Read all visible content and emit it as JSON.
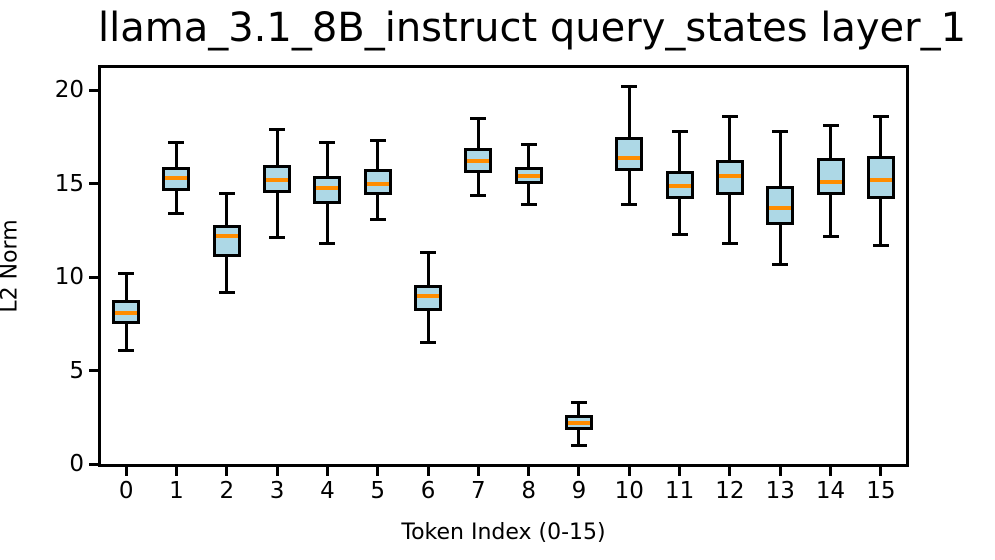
{
  "chart_data": {
    "type": "boxplot",
    "title": "llama_3.1_8B_instruct query_states layer_1",
    "xlabel": "Token Index (0-15)",
    "ylabel": "L2 Norm",
    "categories": [
      "0",
      "1",
      "2",
      "3",
      "4",
      "5",
      "6",
      "7",
      "8",
      "9",
      "10",
      "11",
      "12",
      "13",
      "14",
      "15"
    ],
    "yticks": [
      0,
      5,
      10,
      15,
      20
    ],
    "ylim": [
      0,
      21.2
    ],
    "grid": false,
    "legend": "none",
    "series": [
      {
        "token": 0,
        "whislo": 6.1,
        "q1": 7.5,
        "med": 8.1,
        "q3": 8.8,
        "whishi": 10.2
      },
      {
        "token": 1,
        "whislo": 13.4,
        "q1": 14.6,
        "med": 15.3,
        "q3": 15.9,
        "whishi": 17.2
      },
      {
        "token": 2,
        "whislo": 9.2,
        "q1": 11.1,
        "med": 12.2,
        "q3": 12.8,
        "whishi": 14.5
      },
      {
        "token": 3,
        "whislo": 12.1,
        "q1": 14.5,
        "med": 15.2,
        "q3": 16.0,
        "whishi": 17.9
      },
      {
        "token": 4,
        "whislo": 11.8,
        "q1": 13.9,
        "med": 14.8,
        "q3": 15.4,
        "whishi": 17.2
      },
      {
        "token": 5,
        "whislo": 13.1,
        "q1": 14.4,
        "med": 15.0,
        "q3": 15.8,
        "whishi": 17.3
      },
      {
        "token": 6,
        "whislo": 6.5,
        "q1": 8.2,
        "med": 9.0,
        "q3": 9.6,
        "whishi": 11.3
      },
      {
        "token": 7,
        "whislo": 14.4,
        "q1": 15.6,
        "med": 16.2,
        "q3": 16.9,
        "whishi": 18.5
      },
      {
        "token": 8,
        "whislo": 13.9,
        "q1": 15.0,
        "med": 15.4,
        "q3": 15.9,
        "whishi": 17.1
      },
      {
        "token": 9,
        "whislo": 1.0,
        "q1": 1.8,
        "med": 2.2,
        "q3": 2.6,
        "whishi": 3.3
      },
      {
        "token": 10,
        "whislo": 13.9,
        "q1": 15.7,
        "med": 16.4,
        "q3": 17.5,
        "whishi": 20.2
      },
      {
        "token": 11,
        "whislo": 12.3,
        "q1": 14.2,
        "med": 14.9,
        "q3": 15.7,
        "whishi": 17.8
      },
      {
        "token": 12,
        "whislo": 11.8,
        "q1": 14.4,
        "med": 15.4,
        "q3": 16.3,
        "whishi": 18.6
      },
      {
        "token": 13,
        "whislo": 10.7,
        "q1": 12.8,
        "med": 13.7,
        "q3": 14.9,
        "whishi": 17.8
      },
      {
        "token": 14,
        "whislo": 12.2,
        "q1": 14.4,
        "med": 15.1,
        "q3": 16.4,
        "whishi": 18.1
      },
      {
        "token": 15,
        "whislo": 11.7,
        "q1": 14.2,
        "med": 15.2,
        "q3": 16.5,
        "whishi": 18.6
      }
    ],
    "colors": {
      "box_fill": "#add8e6",
      "box_edge": "#000000",
      "median": "#ff8c00",
      "whisker": "#000000",
      "background": "#ffffff"
    }
  }
}
